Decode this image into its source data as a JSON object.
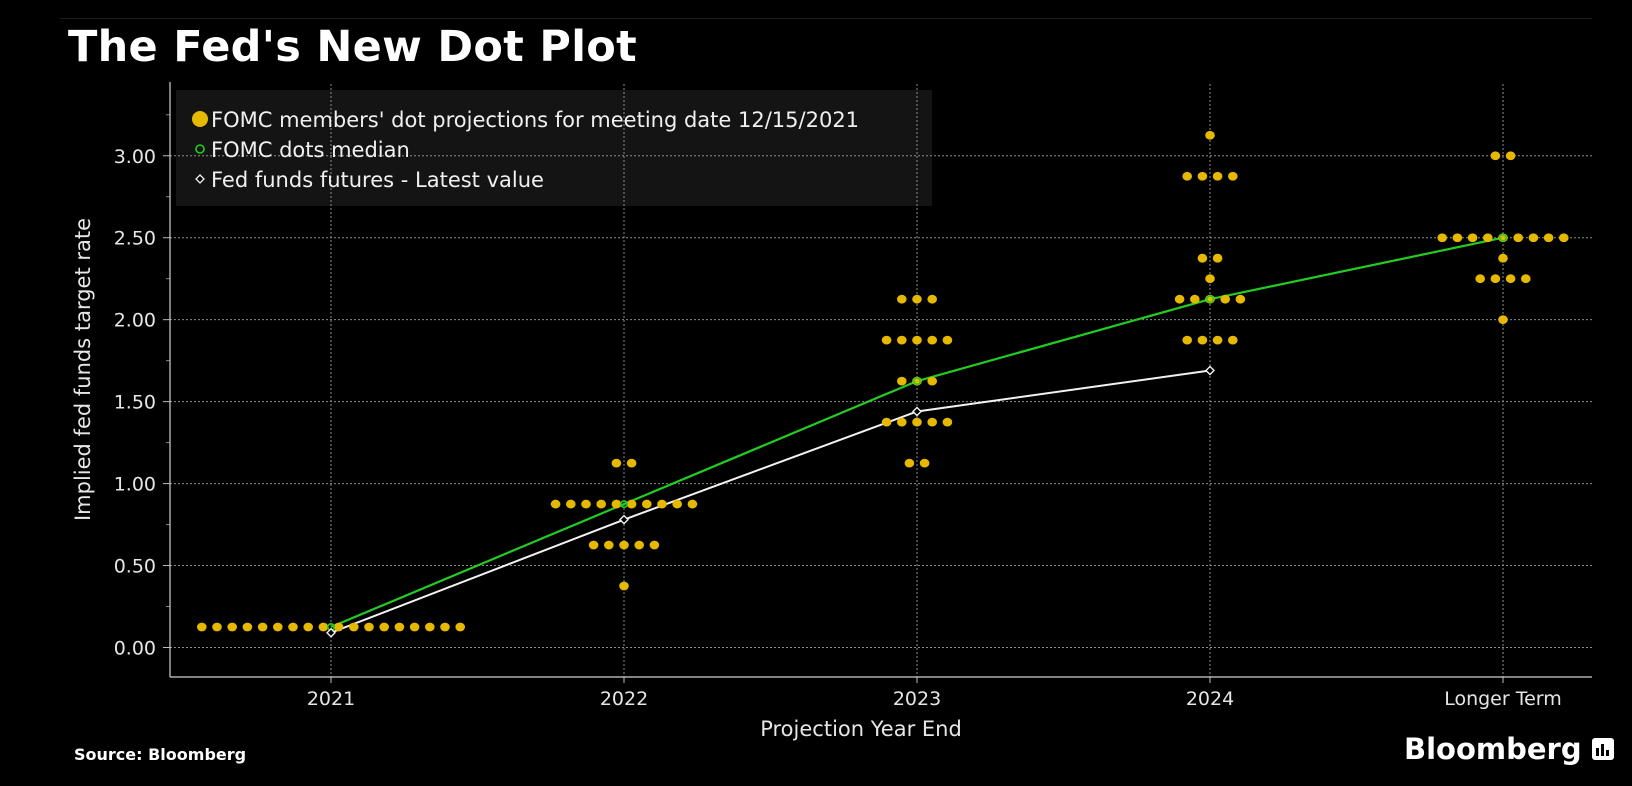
{
  "title": "The Fed's New Dot Plot",
  "source": "Source: Bloomberg",
  "brand": "Bloomberg",
  "colors": {
    "background": "#000000",
    "dots": "#e6b800",
    "median": "#22cc22",
    "futures": "#f2f2f2",
    "grid": "#8c8c8c",
    "legend_bg": "#141414"
  },
  "chart_data": {
    "type": "scatter",
    "title": "The Fed's New Dot Plot",
    "xlabel": "Projection Year End",
    "ylabel": "Implied fed funds target rate",
    "categories": [
      "2021",
      "2022",
      "2023",
      "2024",
      "Longer Term"
    ],
    "ylim": [
      -0.18,
      3.45
    ],
    "yticks": [
      "0.00",
      "0.50",
      "1.00",
      "1.50",
      "2.00",
      "2.50",
      "3.00"
    ],
    "grid": true,
    "legend_position": "top-left",
    "legend": [
      "FOMC members' dot projections for meeting date 12/15/2021",
      "FOMC dots median",
      "Fed funds futures - Latest value"
    ],
    "series": [
      {
        "name": "FOMC members' dot projections for meeting date 12/15/2021",
        "kind": "dots",
        "counts": [
          [
            [
              0.125,
              18
            ]
          ],
          [
            [
              1.125,
              2
            ],
            [
              0.875,
              10
            ],
            [
              0.625,
              5
            ],
            [
              0.375,
              1
            ]
          ],
          [
            [
              2.125,
              3
            ],
            [
              1.875,
              5
            ],
            [
              1.625,
              3
            ],
            [
              1.375,
              5
            ],
            [
              1.125,
              2
            ]
          ],
          [
            [
              3.125,
              1
            ],
            [
              2.875,
              4
            ],
            [
              2.375,
              2
            ],
            [
              2.25,
              1
            ],
            [
              2.125,
              5
            ],
            [
              1.875,
              4
            ]
          ],
          [
            [
              3.0,
              2
            ],
            [
              2.5,
              9
            ],
            [
              2.375,
              1
            ],
            [
              2.25,
              4
            ],
            [
              2.0,
              1
            ]
          ]
        ]
      },
      {
        "name": "FOMC dots median",
        "kind": "line",
        "values": [
          0.125,
          0.875,
          1.625,
          2.125,
          2.5
        ]
      },
      {
        "name": "Fed funds futures - Latest value",
        "kind": "line",
        "values": [
          0.09,
          0.78,
          1.44,
          1.69,
          null
        ]
      }
    ]
  }
}
